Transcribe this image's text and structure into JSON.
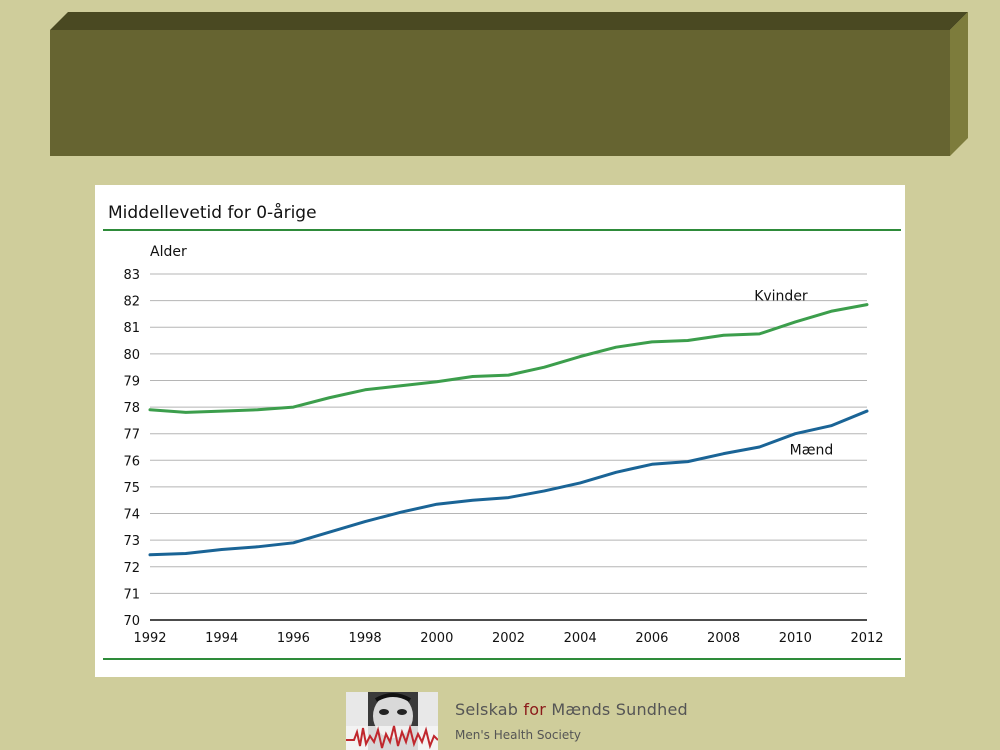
{
  "colors": {
    "background": "#cfcd9b",
    "banner_face": "#666431",
    "banner_side": "#7d7c3c",
    "banner_top": "#4a4922",
    "women_line": "#3c9e4c",
    "men_line": "#1a6496",
    "accent_rule": "#2e8b3a",
    "brand_for": "#8b1a1a"
  },
  "chart_data": {
    "type": "line",
    "title": "Middellevetid for 0-årige",
    "ylabel": "Alder",
    "xlabel": "",
    "ylim": [
      70,
      83
    ],
    "xlim": [
      1992,
      2012
    ],
    "y_ticks": [
      70,
      71,
      72,
      73,
      74,
      75,
      76,
      77,
      78,
      79,
      80,
      81,
      82,
      83
    ],
    "x_ticks": [
      1992,
      1994,
      1996,
      1998,
      2000,
      2002,
      2004,
      2006,
      2008,
      2010,
      2012
    ],
    "grid": true,
    "x": [
      1992,
      1993,
      1994,
      1995,
      1996,
      1997,
      1998,
      1999,
      2000,
      2001,
      2002,
      2003,
      2004,
      2005,
      2006,
      2007,
      2008,
      2009,
      2010,
      2011,
      2012
    ],
    "series": [
      {
        "name": "Kvinder",
        "color": "#3c9e4c",
        "values": [
          77.9,
          77.8,
          77.85,
          77.9,
          78.0,
          78.35,
          78.65,
          78.8,
          78.95,
          79.15,
          79.2,
          79.5,
          79.9,
          80.25,
          80.45,
          80.5,
          80.7,
          80.75,
          81.2,
          81.6,
          81.85
        ]
      },
      {
        "name": "Mænd",
        "color": "#1a6496",
        "values": [
          72.45,
          72.5,
          72.65,
          72.75,
          72.9,
          73.3,
          73.7,
          74.05,
          74.35,
          74.5,
          74.6,
          74.85,
          75.15,
          75.55,
          75.85,
          75.95,
          76.25,
          76.5,
          77.0,
          77.3,
          77.85
        ]
      }
    ]
  },
  "footer": {
    "brand_prefix": "Selskab ",
    "brand_for": "for",
    "brand_suffix": " Mænds Sundhed",
    "subtitle": "Men's Health Society",
    "logo_icon": "face-ecg-logo"
  }
}
